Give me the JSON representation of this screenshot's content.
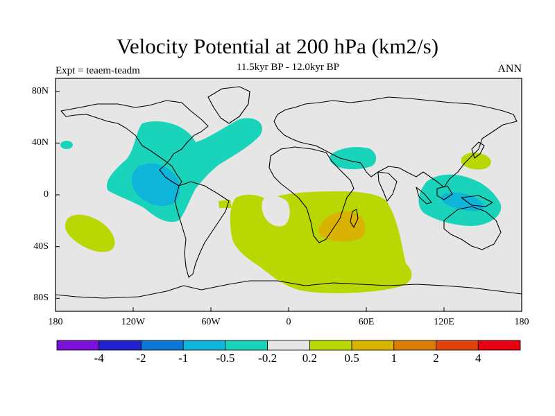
{
  "header": {
    "title": "Velocity Potential at 200 hPa (km2/s)",
    "subtitle": "11.5kyr BP - 12.0kyr BP",
    "expt": "Expt = teaem-teadm",
    "season": "ANN"
  },
  "map": {
    "lat_labels": [
      "80N",
      "40N",
      "0",
      "40S",
      "80S"
    ],
    "lat_values": [
      80,
      40,
      0,
      -40,
      -80
    ],
    "lon_labels": [
      "180",
      "120W",
      "60W",
      "0",
      "60E",
      "120E",
      "180"
    ],
    "lon_values": [
      -180,
      -120,
      -60,
      0,
      60,
      120,
      180
    ],
    "extent": {
      "lon": [
        -180,
        180
      ],
      "lat": [
        -90,
        90
      ]
    },
    "background_color": "#e6e6e6"
  },
  "colorbar": {
    "colors": [
      "#7a11d6",
      "#2222cc",
      "#0d77d5",
      "#0fb4d9",
      "#19d4bb",
      "#e6e6e6",
      "#b9d702",
      "#d9b302",
      "#dc7d07",
      "#e0430a",
      "#e70010"
    ],
    "labels": [
      "-4",
      "-2",
      "-1",
      "-0.5",
      "-0.2",
      "0.2",
      "0.5",
      "1",
      "2",
      "4"
    ]
  }
}
